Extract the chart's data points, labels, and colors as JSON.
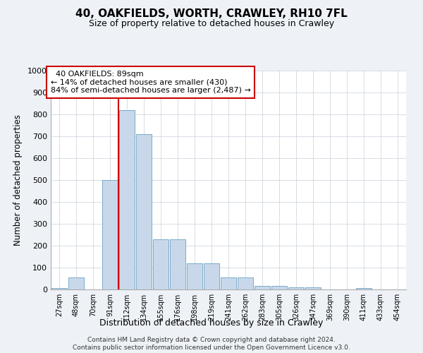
{
  "title1": "40, OAKFIELDS, WORTH, CRAWLEY, RH10 7FL",
  "title2": "Size of property relative to detached houses in Crawley",
  "xlabel": "Distribution of detached houses by size in Crawley",
  "ylabel": "Number of detached properties",
  "categories": [
    "27sqm",
    "48sqm",
    "70sqm",
    "91sqm",
    "112sqm",
    "134sqm",
    "155sqm",
    "176sqm",
    "198sqm",
    "219sqm",
    "241sqm",
    "262sqm",
    "283sqm",
    "305sqm",
    "326sqm",
    "347sqm",
    "369sqm",
    "390sqm",
    "411sqm",
    "433sqm",
    "454sqm"
  ],
  "bar_heights": [
    5,
    55,
    0,
    500,
    820,
    710,
    230,
    230,
    120,
    120,
    55,
    55,
    15,
    15,
    10,
    10,
    0,
    0,
    8,
    0,
    0
  ],
  "bar_color": "#c8d8ea",
  "bar_edge_color": "#7aaac8",
  "red_line_index": 3.5,
  "annotation_text": "  40 OAKFIELDS: 89sqm\n← 14% of detached houses are smaller (430)\n84% of semi-detached houses are larger (2,487) →",
  "annotation_box_color": "#ffffff",
  "annotation_box_edge": "#cc0000",
  "ylim": [
    0,
    1000
  ],
  "yticks": [
    0,
    100,
    200,
    300,
    400,
    500,
    600,
    700,
    800,
    900,
    1000
  ],
  "footer1": "Contains HM Land Registry data © Crown copyright and database right 2024.",
  "footer2": "Contains public sector information licensed under the Open Government Licence v3.0.",
  "bg_color": "#eef2f7",
  "plot_bg_color": "#ffffff",
  "grid_color": "#c8d0dc"
}
